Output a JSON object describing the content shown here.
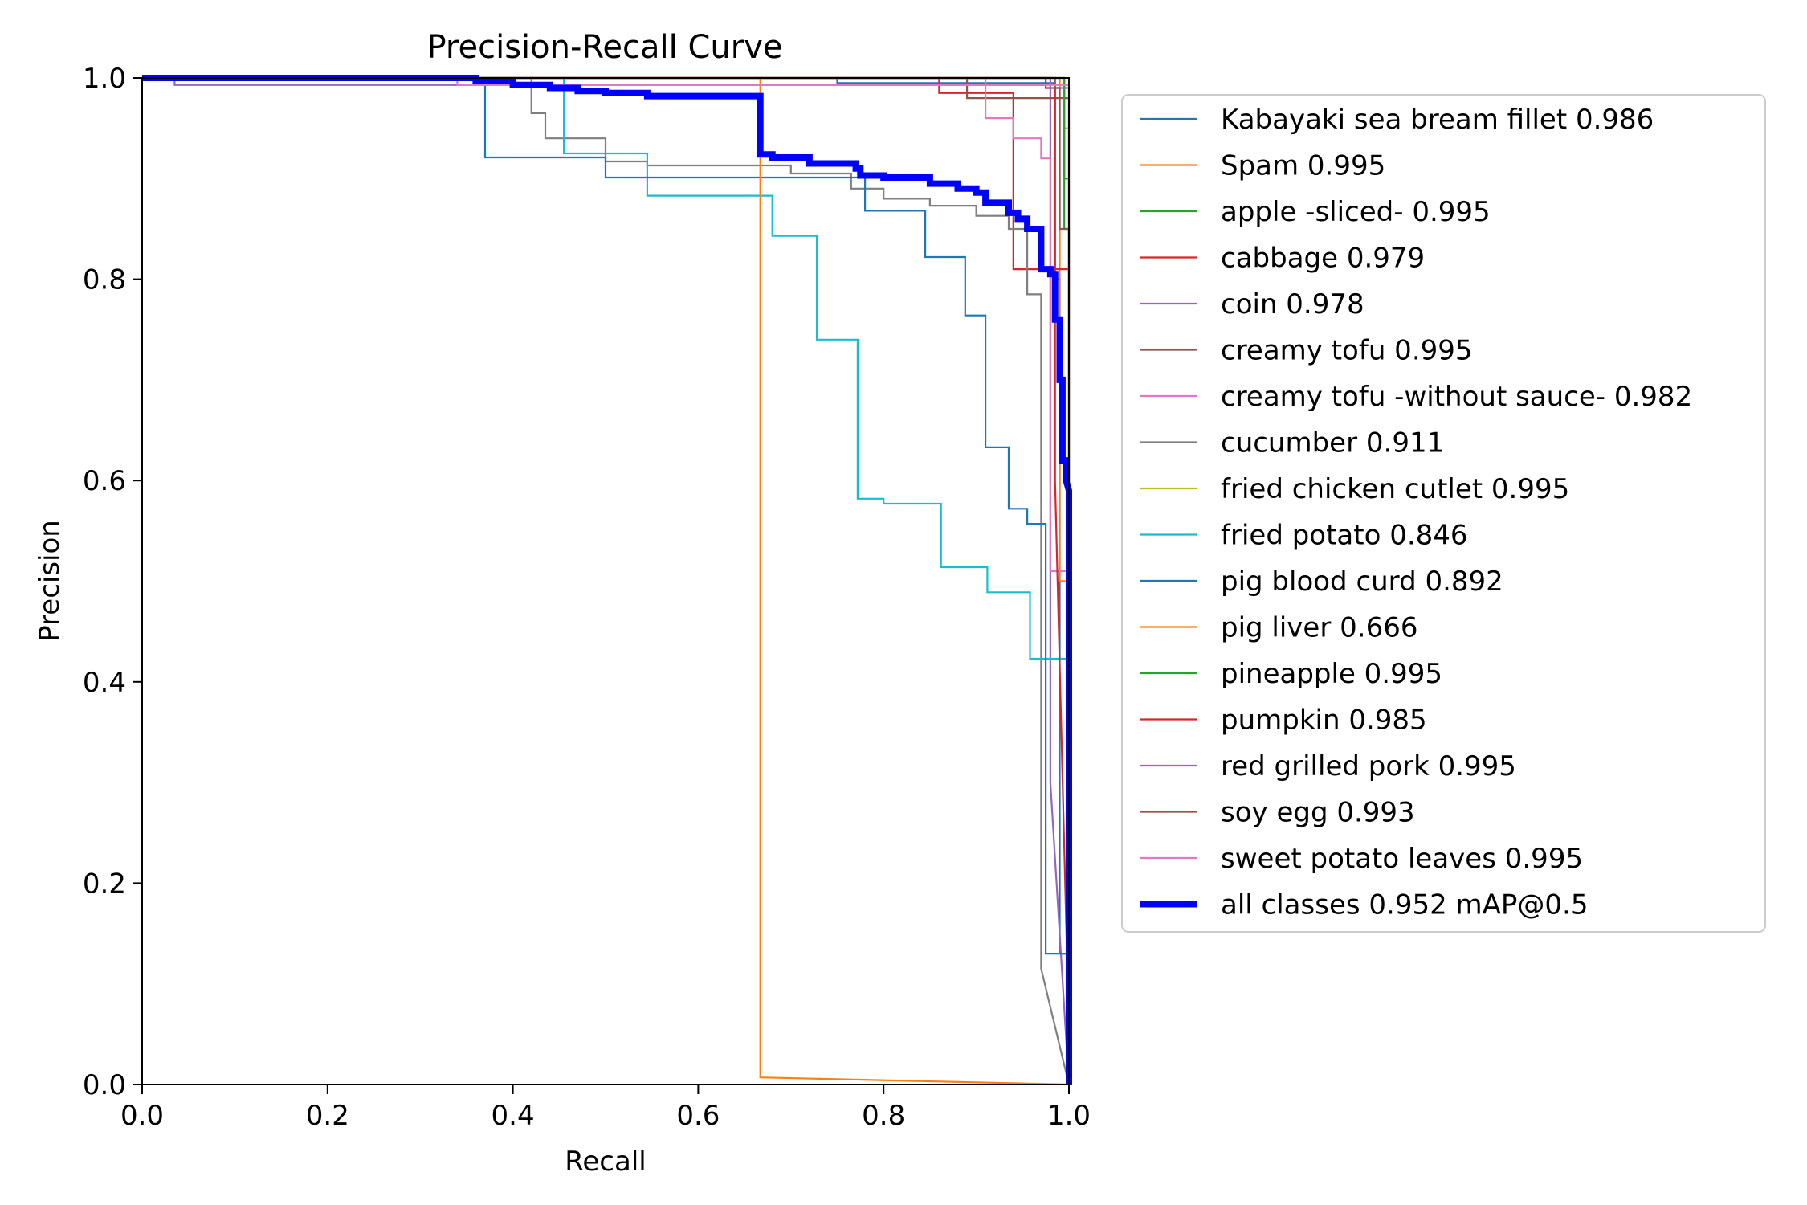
{
  "chart_data": {
    "type": "line",
    "title": "Precision-Recall Curve",
    "xlabel": "Recall",
    "ylabel": "Precision",
    "xlim": [
      0,
      1
    ],
    "ylim": [
      0,
      1
    ],
    "xticks": [
      "0.0",
      "0.2",
      "0.4",
      "0.6",
      "0.8",
      "1.0"
    ],
    "yticks": [
      "0.0",
      "0.2",
      "0.4",
      "0.6",
      "0.8",
      "1.0"
    ],
    "grid": false,
    "legend_position": "outside-right",
    "series": [
      {
        "name": "Kabayaki sea bream fillet 0.986",
        "color": "#1f77b4",
        "points": [
          [
            0,
            1
          ],
          [
            0.75,
            1
          ],
          [
            0.75,
            0.995
          ],
          [
            0.985,
            0.995
          ],
          [
            0.985,
            0.8
          ],
          [
            0.99,
            0.8
          ],
          [
            0.99,
            0.13
          ],
          [
            1,
            0.13
          ],
          [
            1,
            0
          ]
        ]
      },
      {
        "name": "Spam 0.995",
        "color": "#ff7f0e",
        "points": [
          [
            0,
            1
          ],
          [
            0.99,
            1
          ],
          [
            0.99,
            0.5
          ],
          [
            1,
            0.5
          ],
          [
            1,
            0
          ]
        ]
      },
      {
        "name": "apple -sliced- 0.995",
        "color": "#2ca02c",
        "points": [
          [
            0,
            1
          ],
          [
            0.995,
            1
          ],
          [
            0.995,
            0.9
          ],
          [
            1,
            0.9
          ],
          [
            1,
            0
          ]
        ]
      },
      {
        "name": "cabbage 0.979",
        "color": "#d62728",
        "points": [
          [
            0,
            1
          ],
          [
            0.86,
            1
          ],
          [
            0.86,
            0.985
          ],
          [
            0.94,
            0.985
          ],
          [
            0.94,
            0.81
          ],
          [
            1,
            0.81
          ],
          [
            1,
            0
          ]
        ]
      },
      {
        "name": "coin 0.978",
        "color": "#9467bd",
        "points": [
          [
            0,
            1
          ],
          [
            0.035,
            1
          ],
          [
            0.035,
            0.993
          ],
          [
            0.98,
            0.993
          ],
          [
            0.98,
            0.3
          ],
          [
            1,
            0
          ]
        ]
      },
      {
        "name": "creamy tofu 0.995",
        "color": "#8c564b",
        "points": [
          [
            0,
            1
          ],
          [
            0.89,
            1
          ],
          [
            0.89,
            0.98
          ],
          [
            1,
            0.98
          ],
          [
            1,
            0
          ]
        ]
      },
      {
        "name": "creamy tofu -without sauce- 0.982",
        "color": "#e377c2",
        "points": [
          [
            0,
            1
          ],
          [
            0.91,
            1
          ],
          [
            0.91,
            0.96
          ],
          [
            0.94,
            0.96
          ],
          [
            0.94,
            0.94
          ],
          [
            0.97,
            0.94
          ],
          [
            0.97,
            0.92
          ],
          [
            0.98,
            0.92
          ],
          [
            0.98,
            0.51
          ],
          [
            1,
            0.51
          ],
          [
            1,
            0
          ]
        ]
      },
      {
        "name": "cucumber 0.911",
        "color": "#7f7f7f",
        "points": [
          [
            0,
            1
          ],
          [
            0.42,
            1
          ],
          [
            0.42,
            0.965
          ],
          [
            0.435,
            0.965
          ],
          [
            0.435,
            0.94
          ],
          [
            0.5,
            0.94
          ],
          [
            0.5,
            0.917
          ],
          [
            0.545,
            0.917
          ],
          [
            0.545,
            0.913
          ],
          [
            0.7,
            0.913
          ],
          [
            0.7,
            0.905
          ],
          [
            0.765,
            0.905
          ],
          [
            0.765,
            0.89
          ],
          [
            0.8,
            0.89
          ],
          [
            0.8,
            0.88
          ],
          [
            0.85,
            0.88
          ],
          [
            0.85,
            0.873
          ],
          [
            0.9,
            0.873
          ],
          [
            0.9,
            0.863
          ],
          [
            0.935,
            0.863
          ],
          [
            0.935,
            0.85
          ],
          [
            0.955,
            0.85
          ],
          [
            0.955,
            0.785
          ],
          [
            0.97,
            0.785
          ],
          [
            0.97,
            0.115
          ],
          [
            1,
            0
          ]
        ]
      },
      {
        "name": "fried chicken cutlet 0.995",
        "color": "#bcbd22",
        "points": [
          [
            0,
            1
          ],
          [
            0.995,
            1
          ],
          [
            0.995,
            0.95
          ],
          [
            1,
            0.95
          ],
          [
            1,
            0
          ]
        ]
      },
      {
        "name": "fried potato 0.846",
        "color": "#17becf",
        "points": [
          [
            0,
            1
          ],
          [
            0.455,
            1
          ],
          [
            0.455,
            0.925
          ],
          [
            0.545,
            0.925
          ],
          [
            0.545,
            0.883
          ],
          [
            0.68,
            0.883
          ],
          [
            0.68,
            0.843
          ],
          [
            0.728,
            0.843
          ],
          [
            0.728,
            0.74
          ],
          [
            0.772,
            0.74
          ],
          [
            0.772,
            0.582
          ],
          [
            0.8,
            0.582
          ],
          [
            0.8,
            0.577
          ],
          [
            0.862,
            0.577
          ],
          [
            0.862,
            0.514
          ],
          [
            0.912,
            0.514
          ],
          [
            0.912,
            0.489
          ],
          [
            0.958,
            0.489
          ],
          [
            0.958,
            0.423
          ],
          [
            1,
            0.423
          ],
          [
            1,
            0
          ]
        ]
      },
      {
        "name": "pig blood curd 0.892",
        "color": "#1f77b4",
        "points": [
          [
            0,
            1
          ],
          [
            0.37,
            1
          ],
          [
            0.37,
            0.921
          ],
          [
            0.5,
            0.921
          ],
          [
            0.5,
            0.901
          ],
          [
            0.78,
            0.901
          ],
          [
            0.78,
            0.868
          ],
          [
            0.845,
            0.868
          ],
          [
            0.845,
            0.822
          ],
          [
            0.888,
            0.822
          ],
          [
            0.888,
            0.764
          ],
          [
            0.91,
            0.764
          ],
          [
            0.91,
            0.633
          ],
          [
            0.935,
            0.633
          ],
          [
            0.935,
            0.572
          ],
          [
            0.955,
            0.572
          ],
          [
            0.955,
            0.557
          ],
          [
            0.975,
            0.557
          ],
          [
            0.975,
            0.13
          ],
          [
            1,
            0.13
          ],
          [
            1,
            0
          ]
        ]
      },
      {
        "name": "pig liver 0.666",
        "color": "#ff7f0e",
        "points": [
          [
            0,
            1
          ],
          [
            0.667,
            1
          ],
          [
            0.667,
            0.007
          ],
          [
            1,
            0
          ]
        ]
      },
      {
        "name": "pineapple 0.995",
        "color": "#2ca02c",
        "points": [
          [
            0,
            1
          ],
          [
            0.995,
            1
          ],
          [
            0.995,
            0.85
          ],
          [
            1,
            0.85
          ],
          [
            1,
            0
          ]
        ]
      },
      {
        "name": "pumpkin 0.985",
        "color": "#d62728",
        "points": [
          [
            0,
            1
          ],
          [
            0.975,
            1
          ],
          [
            0.975,
            0.99
          ],
          [
            0.985,
            0.99
          ],
          [
            0.985,
            0.6
          ],
          [
            1,
            0.05
          ]
        ]
      },
      {
        "name": "red grilled pork 0.995",
        "color": "#9467bd",
        "points": [
          [
            0,
            1
          ],
          [
            0.98,
            1
          ],
          [
            0.98,
            0.99
          ],
          [
            1,
            0.99
          ],
          [
            1,
            0
          ]
        ]
      },
      {
        "name": "soy egg 0.993",
        "color": "#8c564b",
        "points": [
          [
            0,
            1
          ],
          [
            0.985,
            1
          ],
          [
            0.985,
            0.99
          ],
          [
            0.99,
            0.99
          ],
          [
            0.99,
            0.85
          ],
          [
            1,
            0.85
          ],
          [
            1,
            0
          ]
        ]
      },
      {
        "name": "sweet potato leaves 0.995",
        "color": "#e377c2",
        "points": [
          [
            0,
            1
          ],
          [
            0.34,
            1
          ],
          [
            0.34,
            0.993
          ],
          [
            1,
            0.993
          ],
          [
            1,
            0
          ]
        ]
      },
      {
        "name": "all classes 0.952 mAP@0.5",
        "color": "#0000ff",
        "bold": true,
        "points": [
          [
            0,
            1
          ],
          [
            0.36,
            1
          ],
          [
            0.36,
            0.997
          ],
          [
            0.4,
            0.997
          ],
          [
            0.4,
            0.993
          ],
          [
            0.44,
            0.993
          ],
          [
            0.44,
            0.99
          ],
          [
            0.47,
            0.99
          ],
          [
            0.47,
            0.987
          ],
          [
            0.5,
            0.987
          ],
          [
            0.5,
            0.985
          ],
          [
            0.545,
            0.985
          ],
          [
            0.545,
            0.982
          ],
          [
            0.667,
            0.982
          ],
          [
            0.667,
            0.924
          ],
          [
            0.68,
            0.924
          ],
          [
            0.68,
            0.921
          ],
          [
            0.72,
            0.921
          ],
          [
            0.72,
            0.915
          ],
          [
            0.77,
            0.915
          ],
          [
            0.77,
            0.91
          ],
          [
            0.775,
            0.91
          ],
          [
            0.775,
            0.903
          ],
          [
            0.8,
            0.903
          ],
          [
            0.8,
            0.901
          ],
          [
            0.85,
            0.901
          ],
          [
            0.85,
            0.895
          ],
          [
            0.88,
            0.895
          ],
          [
            0.88,
            0.89
          ],
          [
            0.9,
            0.89
          ],
          [
            0.9,
            0.886
          ],
          [
            0.91,
            0.886
          ],
          [
            0.91,
            0.876
          ],
          [
            0.935,
            0.876
          ],
          [
            0.935,
            0.866
          ],
          [
            0.945,
            0.866
          ],
          [
            0.945,
            0.86
          ],
          [
            0.955,
            0.86
          ],
          [
            0.955,
            0.85
          ],
          [
            0.97,
            0.85
          ],
          [
            0.97,
            0.81
          ],
          [
            0.98,
            0.81
          ],
          [
            0.98,
            0.805
          ],
          [
            0.985,
            0.805
          ],
          [
            0.985,
            0.76
          ],
          [
            0.99,
            0.76
          ],
          [
            0.99,
            0.7
          ],
          [
            0.993,
            0.7
          ],
          [
            0.993,
            0.62
          ],
          [
            0.997,
            0.62
          ],
          [
            0.997,
            0.6
          ],
          [
            1,
            0.59
          ],
          [
            1,
            0
          ]
        ]
      }
    ]
  }
}
